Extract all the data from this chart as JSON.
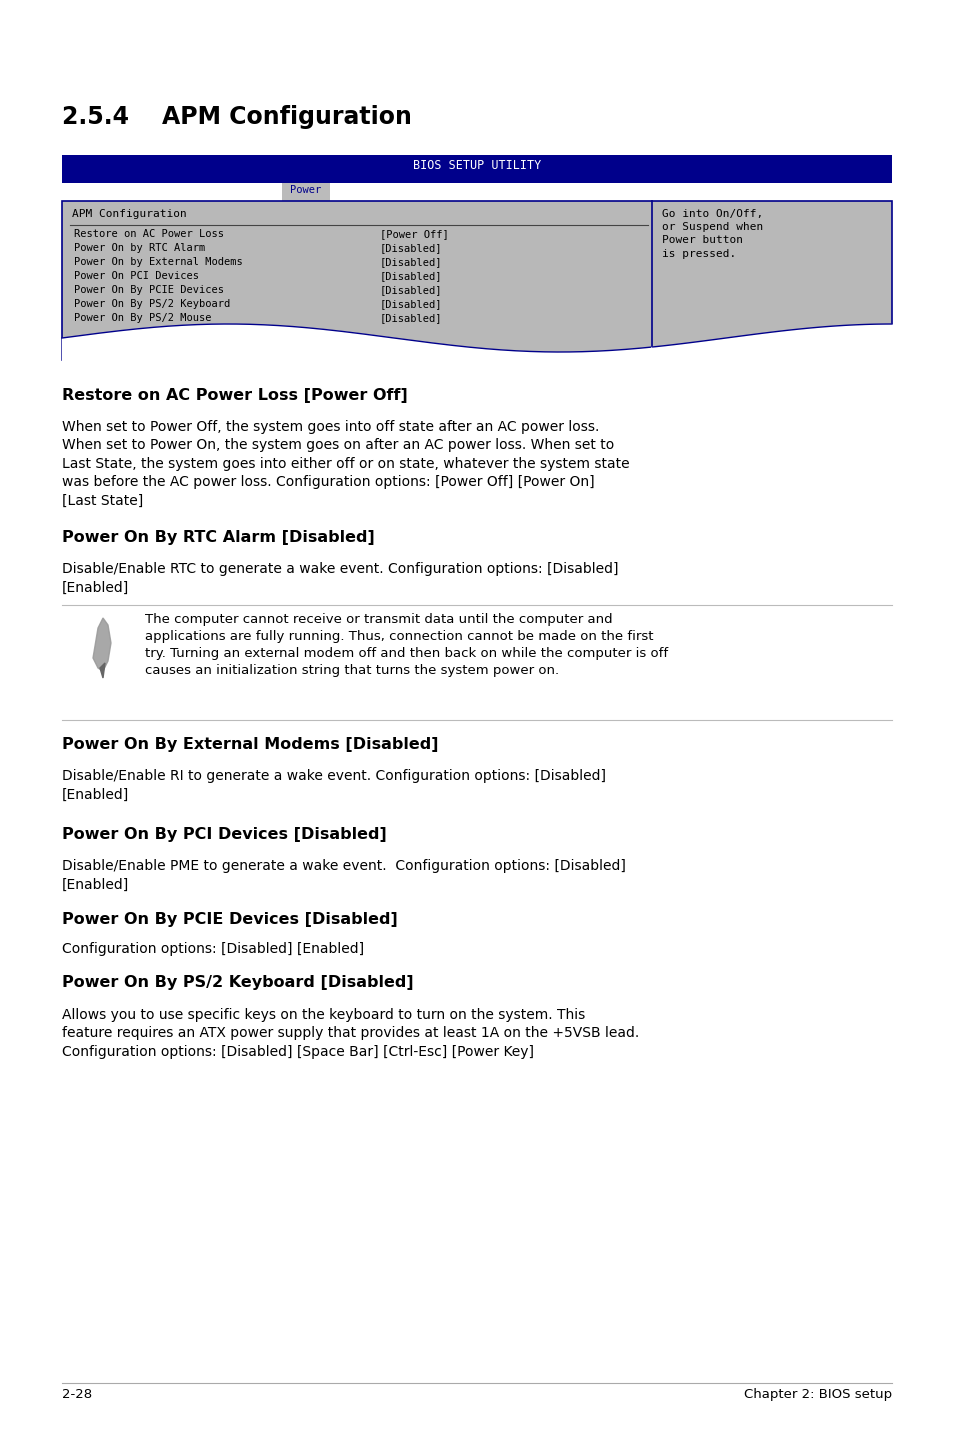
{
  "page_bg": "#ffffff",
  "title": "2.5.4    APM Configuration",
  "bios_header_text": "BIOS SETUP UTILITY",
  "bios_header_bg": "#00008B",
  "bios_header_color": "#ffffff",
  "bios_tab_text": "Power",
  "bios_tab_bg": "#bbbbbb",
  "bios_tab_color": "#00008B",
  "bios_body_bg": "#b8b8b8",
  "bios_body_border": "#00008B",
  "bios_left_title": "APM Configuration",
  "bios_items": [
    [
      "Restore on AC Power Loss",
      "[Power Off]"
    ],
    [
      "Power On by RTC Alarm",
      "[Disabled]"
    ],
    [
      "Power On by External Modems",
      "[Disabled]"
    ],
    [
      "Power On PCI Devices",
      "[Disabled]"
    ],
    [
      "Power On By PCIE Devices",
      "[Disabled]"
    ],
    [
      "Power On By PS/2 Keyboard",
      "[Disabled]"
    ],
    [
      "Power On By PS/2 Mouse",
      "[Disabled]"
    ]
  ],
  "bios_right_text": "Go into On/Off,\nor Suspend when\nPower button\nis pressed.",
  "section_headings": [
    "Restore on AC Power Loss [Power Off]",
    "Power On By RTC Alarm [Disabled]",
    "Power On By External Modems [Disabled]",
    "Power On By PCI Devices [Disabled]",
    "Power On By PCIE Devices [Disabled]",
    "Power On By PS/2 Keyboard [Disabled]"
  ],
  "section_bodies": [
    "When set to Power Off, the system goes into off state after an AC power loss.\nWhen set to Power On, the system goes on after an AC power loss. When set to\nLast State, the system goes into either off or on state, whatever the system state\nwas before the AC power loss. Configuration options: [Power Off] [Power On]\n[Last State]",
    "Disable/Enable RTC to generate a wake event. Configuration options: [Disabled]\n[Enabled]",
    "Disable/Enable RI to generate a wake event. Configuration options: [Disabled]\n[Enabled]",
    "Disable/Enable PME to generate a wake event.  Configuration options: [Disabled]\n[Enabled]",
    "Configuration options: [Disabled] [Enabled]",
    "Allows you to use specific keys on the keyboard to turn on the system. This\nfeature requires an ATX power supply that provides at least 1A on the +5VSB lead.\nConfiguration options: [Disabled] [Space Bar] [Ctrl-Esc] [Power Key]"
  ],
  "note_text": "The computer cannot receive or transmit data until the computer and\napplications are fully running. Thus, connection cannot be made on the first\ntry. Turning an external modem off and then back on while the computer is off\ncauses an initialization string that turns the system power on.",
  "footer_left": "2-28",
  "footer_right": "Chapter 2: BIOS setup"
}
